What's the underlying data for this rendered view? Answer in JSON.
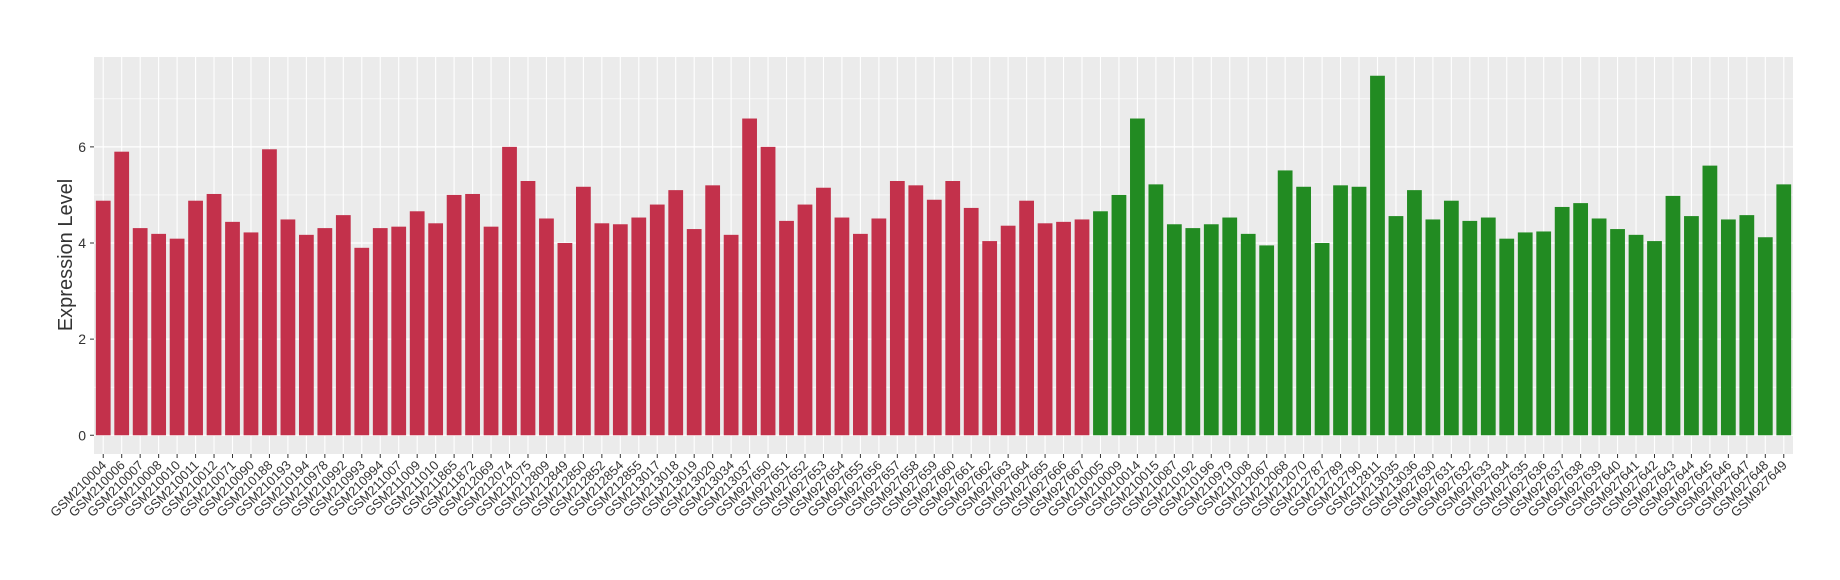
{
  "chart_data": {
    "type": "bar",
    "y_label": "Expression Level",
    "categories": [
      "GSM210004",
      "GSM210006",
      "GSM210007",
      "GSM210008",
      "GSM210010",
      "GSM210011",
      "GSM210012",
      "GSM210071",
      "GSM210090",
      "GSM210188",
      "GSM210193",
      "GSM210194",
      "GSM210978",
      "GSM210992",
      "GSM210993",
      "GSM210994",
      "GSM211007",
      "GSM211009",
      "GSM211010",
      "GSM211865",
      "GSM211872",
      "GSM212069",
      "GSM212074",
      "GSM212075",
      "GSM212809",
      "GSM212849",
      "GSM212850",
      "GSM212852",
      "GSM212854",
      "GSM212855",
      "GSM213017",
      "GSM213018",
      "GSM213019",
      "GSM213020",
      "GSM213034",
      "GSM213037",
      "GSM927650",
      "GSM927651",
      "GSM927652",
      "GSM927653",
      "GSM927654",
      "GSM927655",
      "GSM927656",
      "GSM927657",
      "GSM927658",
      "GSM927659",
      "GSM927660",
      "GSM927661",
      "GSM927662",
      "GSM927663",
      "GSM927664",
      "GSM927665",
      "GSM927666",
      "GSM927667",
      "GSM210005",
      "GSM210009",
      "GSM210014",
      "GSM210015",
      "GSM210087",
      "GSM210192",
      "GSM210196",
      "GSM210979",
      "GSM211008",
      "GSM212067",
      "GSM212068",
      "GSM212070",
      "GSM212787",
      "GSM212789",
      "GSM212790",
      "GSM212811",
      "GSM213035",
      "GSM213036",
      "GSM927630",
      "GSM927631",
      "GSM927632",
      "GSM927633",
      "GSM927634",
      "GSM927635",
      "GSM927636",
      "GSM927637",
      "GSM927638",
      "GSM927639",
      "GSM927640",
      "GSM927641",
      "GSM927642",
      "GSM927643",
      "GSM927644",
      "GSM927645",
      "GSM927646",
      "GSM927647",
      "GSM927648",
      "GSM927649"
    ],
    "values": [
      4.88,
      5.9,
      4.31,
      4.19,
      4.09,
      4.88,
      5.02,
      4.44,
      4.22,
      5.95,
      4.49,
      4.17,
      4.31,
      4.58,
      3.9,
      4.31,
      4.34,
      4.66,
      4.41,
      5.0,
      5.02,
      4.34,
      6.0,
      5.29,
      4.51,
      4.0,
      5.17,
      4.41,
      4.39,
      4.53,
      4.8,
      5.1,
      4.29,
      5.2,
      4.17,
      6.59,
      6.0,
      4.46,
      4.8,
      5.15,
      4.53,
      4.19,
      4.51,
      5.29,
      5.2,
      4.9,
      5.29,
      4.73,
      4.04,
      4.36,
      4.88,
      4.41,
      4.44,
      4.49,
      4.66,
      5.0,
      6.59,
      5.22,
      4.39,
      4.31,
      4.39,
      4.53,
      4.19,
      3.95,
      5.51,
      5.17,
      4.0,
      5.2,
      5.17,
      7.48,
      4.56,
      5.1,
      4.49,
      4.88,
      4.46,
      4.53,
      4.09,
      4.22,
      4.24,
      4.75,
      4.83,
      4.51,
      4.29,
      4.17,
      4.04,
      4.98,
      4.56,
      5.61,
      4.49,
      4.58,
      4.12,
      5.22
    ],
    "colors": [
      "#c3314b",
      "#c3314b",
      "#c3314b",
      "#c3314b",
      "#c3314b",
      "#c3314b",
      "#c3314b",
      "#c3314b",
      "#c3314b",
      "#c3314b",
      "#c3314b",
      "#c3314b",
      "#c3314b",
      "#c3314b",
      "#c3314b",
      "#c3314b",
      "#c3314b",
      "#c3314b",
      "#c3314b",
      "#c3314b",
      "#c3314b",
      "#c3314b",
      "#c3314b",
      "#c3314b",
      "#c3314b",
      "#c3314b",
      "#c3314b",
      "#c3314b",
      "#c3314b",
      "#c3314b",
      "#c3314b",
      "#c3314b",
      "#c3314b",
      "#c3314b",
      "#c3314b",
      "#c3314b",
      "#c3314b",
      "#c3314b",
      "#c3314b",
      "#c3314b",
      "#c3314b",
      "#c3314b",
      "#c3314b",
      "#c3314b",
      "#c3314b",
      "#c3314b",
      "#c3314b",
      "#c3314b",
      "#c3314b",
      "#c3314b",
      "#c3314b",
      "#c3314b",
      "#c3314b",
      "#c3314b",
      "#228b22",
      "#228b22",
      "#228b22",
      "#228b22",
      "#228b22",
      "#228b22",
      "#228b22",
      "#228b22",
      "#228b22",
      "#228b22",
      "#228b22",
      "#228b22",
      "#228b22",
      "#228b22",
      "#228b22",
      "#228b22",
      "#228b22",
      "#228b22",
      "#228b22",
      "#228b22",
      "#228b22",
      "#228b22",
      "#228b22",
      "#228b22",
      "#228b22",
      "#228b22",
      "#228b22",
      "#228b22",
      "#228b22",
      "#228b22",
      "#228b22",
      "#228b22",
      "#228b22",
      "#228b22",
      "#228b22",
      "#228b22",
      "#228b22",
      "#228b22"
    ],
    "ylim": [
      -0.39,
      7.87
    ],
    "yticks": [
      0,
      2,
      4,
      6
    ],
    "grid": true
  }
}
